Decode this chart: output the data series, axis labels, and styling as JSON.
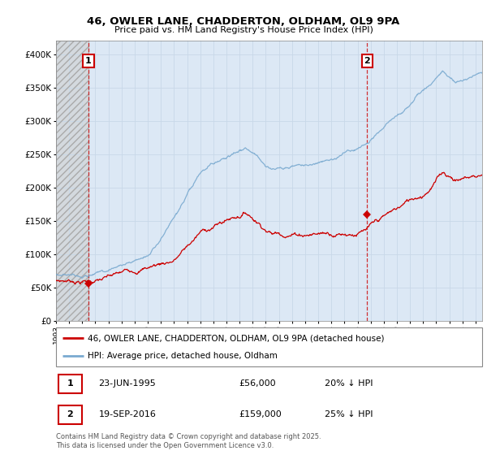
{
  "title1": "46, OWLER LANE, CHADDERTON, OLDHAM, OL9 9PA",
  "title2": "Price paid vs. HM Land Registry's House Price Index (HPI)",
  "ylim": [
    0,
    420000
  ],
  "yticks": [
    0,
    50000,
    100000,
    150000,
    200000,
    250000,
    300000,
    350000,
    400000
  ],
  "ytick_labels": [
    "£0",
    "£50K",
    "£100K",
    "£150K",
    "£200K",
    "£250K",
    "£300K",
    "£350K",
    "£400K"
  ],
  "legend_label1": "46, OWLER LANE, CHADDERTON, OLDHAM, OL9 9PA (detached house)",
  "legend_label2": "HPI: Average price, detached house, Oldham",
  "annotation1_date": "23-JUN-1995",
  "annotation1_price": "£56,000",
  "annotation1_hpi": "20% ↓ HPI",
  "annotation2_date": "19-SEP-2016",
  "annotation2_price": "£159,000",
  "annotation2_hpi": "25% ↓ HPI",
  "footer": "Contains HM Land Registry data © Crown copyright and database right 2025.\nThis data is licensed under the Open Government Licence v3.0.",
  "grid_color": "#c8d8e8",
  "bg_main_color": "#dce8f5",
  "purchase1_year": 1995.48,
  "purchase1_price": 56000,
  "purchase2_year": 2016.72,
  "purchase2_price": 159000,
  "line1_color": "#cc0000",
  "line2_color": "#7aaad0",
  "marker_color": "#cc0000",
  "xmin": 1993.0,
  "xmax": 2025.5
}
